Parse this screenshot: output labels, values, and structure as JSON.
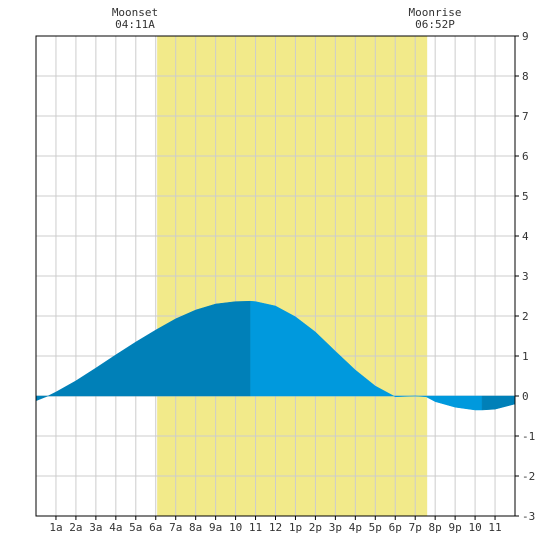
{
  "header": {
    "moonset_label": "Moonset",
    "moonset_time": "04:11A",
    "moonrise_label": "Moonrise",
    "moonrise_time": "06:52P"
  },
  "chart_data": {
    "type": "area",
    "title": "",
    "xlabel": "",
    "ylabel": "",
    "xlim": [
      0,
      24
    ],
    "ylim": [
      -3,
      9
    ],
    "grid": true,
    "x_tick_labels": [
      "1a",
      "2a",
      "3a",
      "4a",
      "5a",
      "6a",
      "7a",
      "8a",
      "9a",
      "10",
      "11",
      "12",
      "1p",
      "2p",
      "3p",
      "4p",
      "5p",
      "6p",
      "7p",
      "8p",
      "9p",
      "10",
      "11"
    ],
    "y_ticks": [
      9,
      8,
      7,
      6,
      5,
      4,
      3,
      2,
      1,
      0,
      -1,
      -2,
      -3
    ],
    "shaded_interval": {
      "start_hour": 6.07,
      "end_hour": 19.6,
      "color": "#f2ea8a"
    },
    "colors": {
      "tide_dark": "#0080b8",
      "tide_light": "#0099dd",
      "background": "#ffffff",
      "grid": "#cccccc",
      "axis": "#000000"
    },
    "series": [
      {
        "x": [
          0,
          0.6,
          1,
          2,
          3,
          4,
          5,
          6,
          7,
          8,
          9,
          10,
          10.75,
          11,
          12,
          13,
          14,
          15,
          16,
          17,
          18,
          19,
          19.55,
          20,
          21,
          22,
          22.35,
          23,
          24
        ],
        "y": [
          -0.12,
          0,
          0.1,
          0.38,
          0.7,
          1.03,
          1.35,
          1.65,
          1.93,
          2.15,
          2.3,
          2.36,
          2.37,
          2.36,
          2.25,
          1.98,
          1.6,
          1.12,
          0.65,
          0.25,
          -0.02,
          0,
          -0.02,
          -0.14,
          -0.28,
          -0.35,
          -0.35,
          -0.33,
          -0.2
        ]
      }
    ],
    "segments": [
      {
        "from_hour": 0,
        "to_hour": 10.75,
        "color": "#0080b8"
      },
      {
        "from_hour": 10.75,
        "to_hour": 22.35,
        "color": "#0099dd"
      },
      {
        "from_hour": 22.35,
        "to_hour": 24,
        "color": "#0080b8"
      }
    ]
  }
}
